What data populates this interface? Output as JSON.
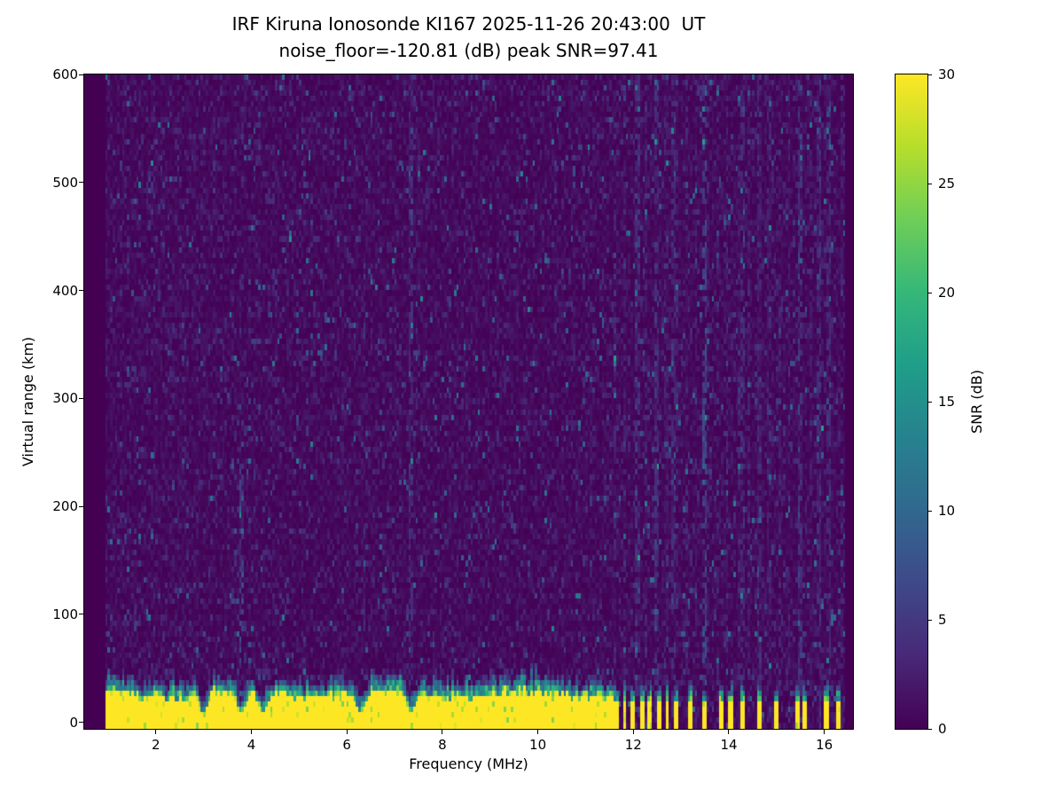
{
  "chart_data": {
    "type": "heatmap",
    "title": "IRF Kiruna Ionosonde KI167 2025-11-26 20:43:00  UT",
    "subtitle": "noise_floor=-120.81 (dB) peak SNR=97.41",
    "station": "KI167",
    "timestamp_ut": "2025-11-26 20:43:00",
    "noise_floor_db": -120.81,
    "peak_snr_db": 97.41,
    "xlabel": "Frequency (MHz)",
    "ylabel": "Virtual range (km)",
    "colorbar_label": "SNR (dB)",
    "xlim": [
      0.5,
      16.6
    ],
    "ylim": [
      -6,
      600
    ],
    "x_ticks": [
      2,
      4,
      6,
      8,
      10,
      12,
      14,
      16
    ],
    "y_ticks": [
      0,
      100,
      200,
      300,
      400,
      500,
      600
    ],
    "colorbar_ticks": [
      0,
      5,
      10,
      15,
      20,
      25,
      30
    ],
    "colorbar_range": [
      0,
      30
    ],
    "colormap": "viridis",
    "features": {
      "seed": 20431167,
      "freq_step": 0.05,
      "range_step": 5,
      "data_freq_range": [
        0.95,
        16.45
      ],
      "noise_mean_db": 1.1,
      "speckle_probability": 0.02,
      "speckle_extra_db": [
        3,
        11
      ],
      "echo_band": {
        "saturated_db": 30,
        "top_km_base": 26,
        "top_km_jitter": 8,
        "transition_km": 14,
        "continuous_max_freq": 11.6,
        "alternating_max_freq": 13.05,
        "alternating_period_mhz": 0.09,
        "notch_freqs": [
          3.0,
          3.8,
          4.25,
          6.3,
          7.35
        ],
        "sparse_bar_freqs": [
          13.2,
          13.5,
          13.85,
          14.05,
          14.3,
          14.65,
          15.0,
          15.45,
          15.6,
          16.05,
          16.3
        ],
        "bar_half_width_mhz": 0.04
      },
      "interference_stripes": [
        {
          "freq": 3.8,
          "strength": 4.0,
          "max_range": 260
        },
        {
          "freq": 7.35,
          "strength": 2.5,
          "max_range": 600
        },
        {
          "freq": 12.1,
          "strength": 2.5,
          "max_range": 600
        },
        {
          "freq": 12.5,
          "strength": 2.5,
          "max_range": 600
        },
        {
          "freq": 12.85,
          "strength": 2.5,
          "max_range": 600
        },
        {
          "freq": 13.5,
          "strength": 5.0,
          "max_range": 600
        },
        {
          "freq": 14.3,
          "strength": 3.0,
          "max_range": 600
        },
        {
          "freq": 14.65,
          "strength": 2.0,
          "max_range": 600
        },
        {
          "freq": 15.5,
          "strength": 3.0,
          "max_range": 600
        },
        {
          "freq": 15.9,
          "strength": 2.0,
          "max_range": 600
        },
        {
          "freq": 16.1,
          "strength": 2.0,
          "max_range": 600
        }
      ],
      "comb_region": {
        "start_freq": 11.6,
        "period_mhz": 0.215,
        "duty": 0.25,
        "strength": 1.6
      }
    }
  },
  "colors": {
    "viridis_stops": [
      "#440154",
      "#482878",
      "#3e4989",
      "#31688e",
      "#26828e",
      "#1f9e89",
      "#35b779",
      "#6ece58",
      "#b5de2b",
      "#fde725"
    ],
    "frame": "#000000",
    "background": "#ffffff"
  }
}
